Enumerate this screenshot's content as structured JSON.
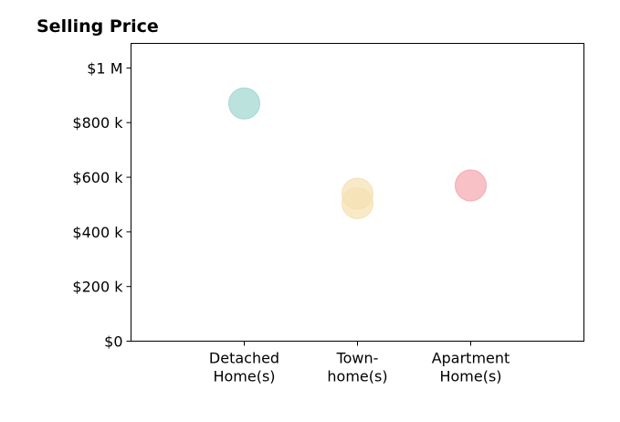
{
  "chart_data": {
    "type": "scatter",
    "title": "Selling Price",
    "xlabel": "",
    "ylabel": "",
    "categories": [
      [
        "Detached",
        "Home(s)"
      ],
      [
        "Town-",
        "home(s)"
      ],
      [
        "Apartment",
        "Home(s)"
      ]
    ],
    "points": [
      {
        "category": 0,
        "value": 870000,
        "color": "#9fd5d0"
      },
      {
        "category": 1,
        "value": 540000,
        "color": "#f5e0b0"
      },
      {
        "category": 1,
        "value": 505000,
        "color": "#f5e0b0"
      },
      {
        "category": 2,
        "value": 570000,
        "color": "#f4a6ad"
      }
    ],
    "ylim": [
      0,
      1090000
    ],
    "yticks": [
      {
        "value": 0,
        "label": "$0"
      },
      {
        "value": 200000,
        "label": "$200 k"
      },
      {
        "value": 400000,
        "label": "$400 k"
      },
      {
        "value": 600000,
        "label": "$600 k"
      },
      {
        "value": 800000,
        "label": "$800 k"
      },
      {
        "value": 1000000,
        "label": "$1 M"
      }
    ],
    "xlim": [
      -1,
      3
    ],
    "grid": false,
    "marker_opacity": 0.7
  }
}
